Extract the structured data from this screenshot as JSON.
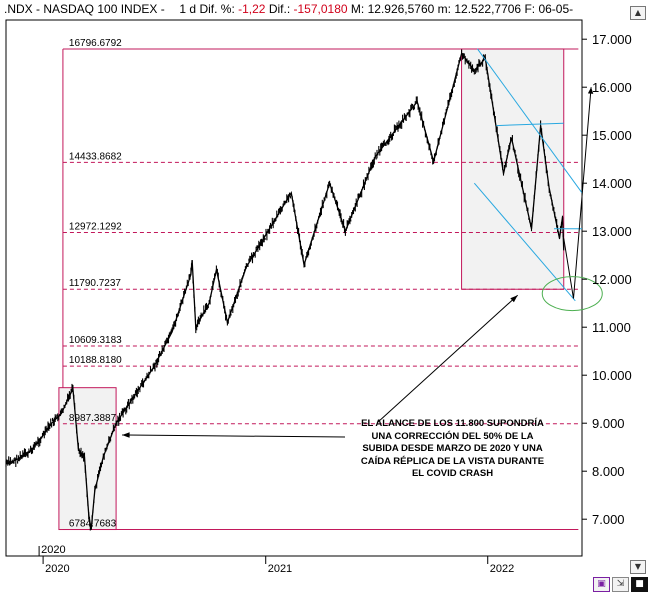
{
  "header": {
    "symbol": ".NDX - NASDAQ 100 INDEX -",
    "interval": "1 d",
    "dif_pct_label": "Dif. %:",
    "dif_pct_value": "-1,22",
    "dif_label": "Dif.:",
    "dif_value": "-157,0180",
    "max_label": "M:",
    "max_value": "12.926,5760",
    "min_label": "m:",
    "min_value": "12.522,7706",
    "date_label": "F:",
    "date_value": "06-05-"
  },
  "toolbar": {
    "save_icon": "save-icon",
    "expand_icon": "expand-icon",
    "dark_icon": "dark-square-icon"
  },
  "annotation": {
    "lines": [
      "EL ALANCE DE LOS 11.800 SUPONDRÍA",
      "UNA CORRECCIÓN DEL 50% DE LA",
      "SUBIDA DESDE MARZO DE 2020 Y UNA",
      "CAÍDA RÉPLICA DE LA VISTA DURANTE",
      "EL COVID CRASH"
    ]
  },
  "colors": {
    "price": "#000000",
    "level": "#c2185b",
    "box_fill": "#f2f2f2",
    "channel": "#29a8e0",
    "target_ellipse": "#4caf50",
    "negative": "#d0021b"
  },
  "chart_data": {
    "type": "line",
    "series_style": "ohlc-bars",
    "title": "",
    "xlabel": "",
    "ylabel": "",
    "ylim": [
      6400,
      17400
    ],
    "x_start": "2019-11-01",
    "x_end": "2022-06-05",
    "x_ticks": [
      {
        "date": "2020-01-01",
        "label": "2020"
      },
      {
        "date": "2021-01-01",
        "label": "2021"
      },
      {
        "date": "2022-01-01",
        "label": "2022"
      }
    ],
    "cursor_date_label": "2020",
    "y_ticks": [
      {
        "value": 7000,
        "label": "7.000"
      },
      {
        "value": 8000,
        "label": "8.000"
      },
      {
        "value": 9000,
        "label": "9.000"
      },
      {
        "value": 10000,
        "label": "10.000"
      },
      {
        "value": 11000,
        "label": "11.000"
      },
      {
        "value": 12000,
        "label": "12.000"
      },
      {
        "value": 13000,
        "label": "13.000"
      },
      {
        "value": 14000,
        "label": "14.000"
      },
      {
        "value": 15000,
        "label": "15.000"
      },
      {
        "value": 16000,
        "label": "16.000"
      },
      {
        "value": 17000,
        "label": "17.000"
      }
    ],
    "levels": [
      {
        "value": 16796.6792,
        "label": "16796.6792"
      },
      {
        "value": 14433.8682,
        "label": "14433.8682"
      },
      {
        "value": 12972.1292,
        "label": "12972.1292"
      },
      {
        "value": 11790.7237,
        "label": "11790.7237"
      },
      {
        "value": 10609.3183,
        "label": "10609.3183"
      },
      {
        "value": 10188.818,
        "label": "10188.8180"
      },
      {
        "value": 8987.3887,
        "label": "8987.3887"
      },
      {
        "value": 6784.7683,
        "label": "6784.7683"
      }
    ],
    "price_path": [
      {
        "date": "2019-11-01",
        "value": 8150
      },
      {
        "date": "2019-11-20",
        "value": 8250
      },
      {
        "date": "2019-12-10",
        "value": 8400
      },
      {
        "date": "2019-12-31",
        "value": 8730
      },
      {
        "date": "2020-01-15",
        "value": 9000
      },
      {
        "date": "2020-01-31",
        "value": 9200
      },
      {
        "date": "2020-02-19",
        "value": 9720
      },
      {
        "date": "2020-02-28",
        "value": 8460
      },
      {
        "date": "2020-03-09",
        "value": 8300
      },
      {
        "date": "2020-03-16",
        "value": 7100
      },
      {
        "date": "2020-03-20",
        "value": 6780
      },
      {
        "date": "2020-03-26",
        "value": 7600
      },
      {
        "date": "2020-04-09",
        "value": 8300
      },
      {
        "date": "2020-04-30",
        "value": 9000
      },
      {
        "date": "2020-05-29",
        "value": 9550
      },
      {
        "date": "2020-06-30",
        "value": 10150
      },
      {
        "date": "2020-07-31",
        "value": 10900
      },
      {
        "date": "2020-08-31",
        "value": 12100
      },
      {
        "date": "2020-09-02",
        "value": 12400
      },
      {
        "date": "2020-09-08",
        "value": 11000
      },
      {
        "date": "2020-09-30",
        "value": 11500
      },
      {
        "date": "2020-10-12",
        "value": 12200
      },
      {
        "date": "2020-10-30",
        "value": 11100
      },
      {
        "date": "2020-11-30",
        "value": 12250
      },
      {
        "date": "2020-12-31",
        "value": 12900
      },
      {
        "date": "2021-02-12",
        "value": 13800
      },
      {
        "date": "2021-03-05",
        "value": 12300
      },
      {
        "date": "2021-04-16",
        "value": 14000
      },
      {
        "date": "2021-05-12",
        "value": 13000
      },
      {
        "date": "2021-06-30",
        "value": 14550
      },
      {
        "date": "2021-07-30",
        "value": 15050
      },
      {
        "date": "2021-09-07",
        "value": 15700
      },
      {
        "date": "2021-10-04",
        "value": 14450
      },
      {
        "date": "2021-11-19",
        "value": 16700
      },
      {
        "date": "2021-12-10",
        "value": 16350
      },
      {
        "date": "2021-12-28",
        "value": 16600
      },
      {
        "date": "2022-01-27",
        "value": 14200
      },
      {
        "date": "2022-02-09",
        "value": 14950
      },
      {
        "date": "2022-03-14",
        "value": 13050
      },
      {
        "date": "2022-03-29",
        "value": 15200
      },
      {
        "date": "2022-04-12",
        "value": 13900
      },
      {
        "date": "2022-04-29",
        "value": 12850
      },
      {
        "date": "2022-05-04",
        "value": 13300
      },
      {
        "date": "2022-05-06",
        "value": 12600
      }
    ],
    "boxes": [
      {
        "name": "covid-crash",
        "from": "2020-01-27",
        "to": "2020-04-30",
        "low": 6784.7683,
        "high": 9740
      },
      {
        "name": "current-correction",
        "from": "2021-11-19",
        "to": "2022-05-06",
        "low": 11790.7237,
        "high": 16796.6792
      }
    ],
    "channel_lines": [
      {
        "from": {
          "date": "2021-12-15",
          "value": 16800
        },
        "to": {
          "date": "2022-06-05",
          "value": 13800
        }
      },
      {
        "from": {
          "date": "2021-12-10",
          "value": 14000
        },
        "to": {
          "date": "2022-05-25",
          "value": 11550
        }
      },
      {
        "from": {
          "date": "2022-01-15",
          "value": 15200
        },
        "to": {
          "date": "2022-05-06",
          "value": 15250
        }
      },
      {
        "from": {
          "date": "2022-04-20",
          "value": 13050
        },
        "to": {
          "date": "2022-06-05",
          "value": 13050
        }
      }
    ],
    "projection": [
      {
        "date": "2022-05-06",
        "value": 12850
      },
      {
        "date": "2022-05-22",
        "value": 11600
      },
      {
        "date": "2022-06-20",
        "value": 16000
      }
    ],
    "target_ellipse": {
      "date": "2022-05-20",
      "value": 11700
    }
  }
}
